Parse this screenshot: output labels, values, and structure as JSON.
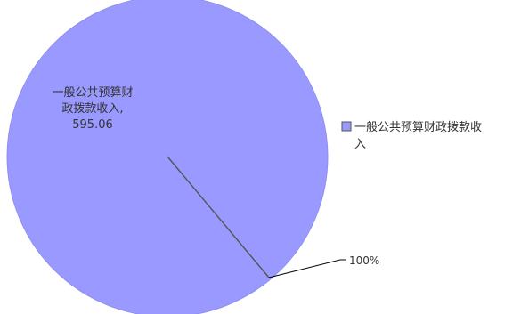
{
  "chart_data": {
    "type": "pie",
    "title": "",
    "series": [
      {
        "name": "一般公共预算财政拨款收入",
        "value": 595.06,
        "percent": "100%",
        "color": "#9999ff"
      }
    ],
    "data_label_lines": [
      "一般公共预算财",
      "政拨款收入,",
      "595.06"
    ],
    "legend": {
      "placement": "right",
      "lines": [
        "一般公共预算财政拨款收",
        "入"
      ]
    }
  }
}
